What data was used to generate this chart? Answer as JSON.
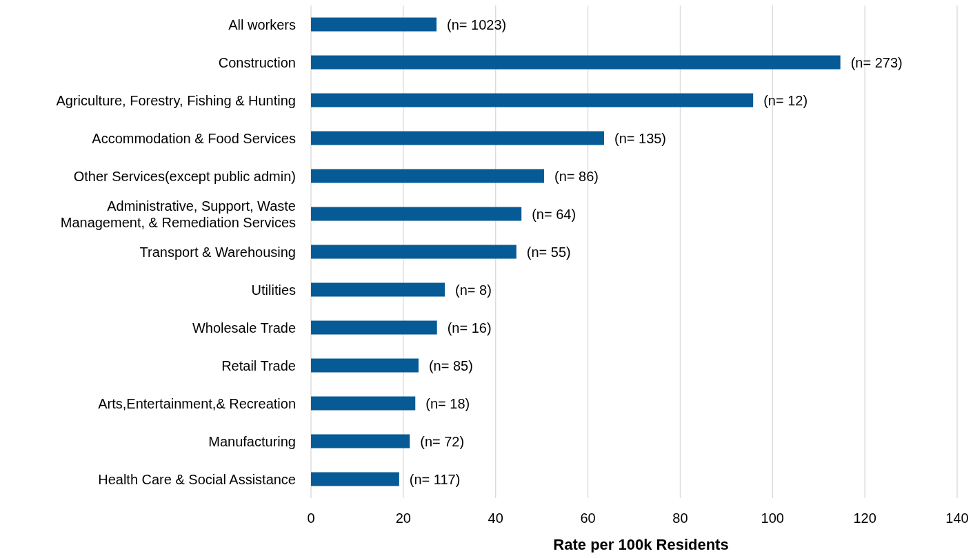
{
  "chart_data": {
    "type": "bar",
    "orientation": "horizontal",
    "xlabel": "Rate per 100k Residents",
    "categories": [
      "All workers",
      "Construction",
      "Agriculture, Forestry, Fishing & Hunting",
      "Accommodation & Food Services",
      "Other Services(except public admin)",
      "Administrative, Support, Waste\nManagement, & Remediation Services",
      "Transport & Warehousing",
      "Utilities",
      "Wholesale Trade",
      "Retail Trade",
      "Arts,Entertainment,& Recreation",
      "Manufacturing",
      "Health Care & Social Assistance"
    ],
    "values": [
      27.2,
      114.7,
      95.8,
      63.5,
      50.5,
      45.6,
      44.5,
      29.0,
      27.3,
      23.3,
      22.6,
      21.4,
      19.1
    ],
    "annotations": [
      {
        "text": "(n= 1023)",
        "x": 27.2,
        "y": "All workers"
      },
      {
        "text": "(n= 273)",
        "x": 114.7,
        "y": "Construction"
      },
      {
        "text": "(n= 12)",
        "x": 95.8,
        "y": "Agriculture, Forestry, Fishing & Hunting"
      },
      {
        "text": "(n= 135)",
        "x": 63.5,
        "y": "Accommodation & Food Services"
      },
      {
        "text": "(n= 86)",
        "x": 50.5,
        "y": "Other Services(except public admin)"
      },
      {
        "text": "(n= 64)",
        "x": 45.6,
        "y": "Administrative, Support, Waste\nManagement, & Remediation Services"
      },
      {
        "text": "(n= 55)",
        "x": 44.5,
        "y": "Transport & Warehousing"
      },
      {
        "text": "(n= 8)",
        "x": 29.0,
        "y": "Utilities"
      },
      {
        "text": "(n= 16)",
        "x": 27.3,
        "y": "Wholesale Trade"
      },
      {
        "text": "(n= 85)",
        "x": 23.3,
        "y": "Retail Trade"
      },
      {
        "text": "(n= 18)",
        "x": 22.6,
        "y": "Arts,Entertainment,& Recreation"
      },
      {
        "text": "(n= 72)",
        "x": 21.4,
        "y": "Manufacturing"
      },
      {
        "text": "(n= 117)",
        "x": 19.1,
        "y": "Health Care & Social Assistance"
      }
    ],
    "color": "#065a96",
    "xlim": [
      0,
      140
    ],
    "xticks": [
      0,
      20,
      40,
      60,
      80,
      100,
      120,
      140
    ],
    "grid": "x"
  }
}
